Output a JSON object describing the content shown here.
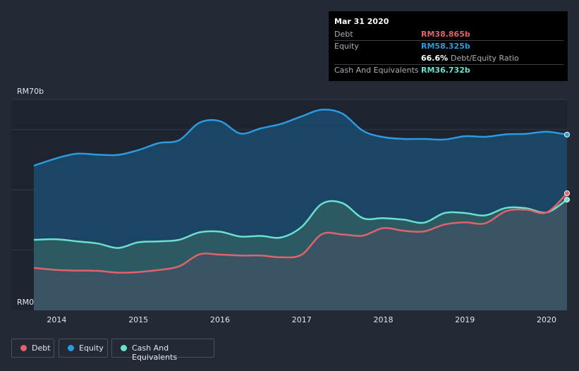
{
  "chart_data": {
    "type": "area",
    "y_top_label": "RM70b",
    "y_bottom_label": "RM0",
    "ylim": [
      0,
      70
    ],
    "xlim": [
      2013.72,
      2020.25
    ],
    "x_ticks": [
      {
        "label": "2014",
        "x": 2014
      },
      {
        "label": "2015",
        "x": 2015
      },
      {
        "label": "2016",
        "x": 2016
      },
      {
        "label": "2017",
        "x": 2017
      },
      {
        "label": "2018",
        "x": 2018
      },
      {
        "label": "2019",
        "x": 2019
      },
      {
        "label": "2020",
        "x": 2020
      }
    ],
    "gridlines_y": [
      70,
      60,
      40,
      20
    ],
    "series": [
      {
        "key": "equity",
        "color": "#2b9be0",
        "fill": "#1b4b6e",
        "points": [
          [
            2013.72,
            48.0
          ],
          [
            2014.0,
            50.5
          ],
          [
            2014.25,
            52.0
          ],
          [
            2014.5,
            51.7
          ],
          [
            2014.75,
            51.6
          ],
          [
            2015.0,
            53.2
          ],
          [
            2015.25,
            55.5
          ],
          [
            2015.5,
            56.5
          ],
          [
            2015.75,
            62.3
          ],
          [
            2016.0,
            62.8
          ],
          [
            2016.25,
            58.7
          ],
          [
            2016.5,
            60.4
          ],
          [
            2016.75,
            61.9
          ],
          [
            2017.0,
            64.4
          ],
          [
            2017.25,
            66.6
          ],
          [
            2017.5,
            65.3
          ],
          [
            2017.75,
            59.6
          ],
          [
            2018.0,
            57.5
          ],
          [
            2018.25,
            56.9
          ],
          [
            2018.5,
            56.9
          ],
          [
            2018.75,
            56.7
          ],
          [
            2019.0,
            57.8
          ],
          [
            2019.25,
            57.6
          ],
          [
            2019.5,
            58.4
          ],
          [
            2019.75,
            58.6
          ],
          [
            2020.0,
            59.3
          ],
          [
            2020.25,
            58.325
          ]
        ]
      },
      {
        "key": "cash",
        "color": "#6be0cf",
        "fill": "#2e5e63",
        "points": [
          [
            2013.72,
            23.4
          ],
          [
            2014.0,
            23.6
          ],
          [
            2014.25,
            22.9
          ],
          [
            2014.5,
            22.2
          ],
          [
            2014.75,
            20.7
          ],
          [
            2015.0,
            22.6
          ],
          [
            2015.25,
            22.9
          ],
          [
            2015.5,
            23.4
          ],
          [
            2015.75,
            25.9
          ],
          [
            2016.0,
            26.1
          ],
          [
            2016.25,
            24.5
          ],
          [
            2016.5,
            24.7
          ],
          [
            2016.75,
            24.2
          ],
          [
            2017.0,
            27.7
          ],
          [
            2017.25,
            35.4
          ],
          [
            2017.5,
            35.6
          ],
          [
            2017.75,
            30.6
          ],
          [
            2018.0,
            30.6
          ],
          [
            2018.25,
            30.1
          ],
          [
            2018.5,
            29.1
          ],
          [
            2018.75,
            32.3
          ],
          [
            2019.0,
            32.3
          ],
          [
            2019.25,
            31.5
          ],
          [
            2019.5,
            34.0
          ],
          [
            2019.75,
            33.9
          ],
          [
            2020.0,
            32.5
          ],
          [
            2020.25,
            36.732
          ]
        ]
      },
      {
        "key": "debt",
        "color": "#e0626a",
        "fill": "#3d5466",
        "points": [
          [
            2013.72,
            14.1
          ],
          [
            2014.0,
            13.4
          ],
          [
            2014.25,
            13.2
          ],
          [
            2014.5,
            13.1
          ],
          [
            2014.75,
            12.5
          ],
          [
            2015.0,
            12.7
          ],
          [
            2015.25,
            13.4
          ],
          [
            2015.5,
            14.6
          ],
          [
            2015.75,
            18.6
          ],
          [
            2016.0,
            18.5
          ],
          [
            2016.25,
            18.2
          ],
          [
            2016.5,
            18.2
          ],
          [
            2016.75,
            17.6
          ],
          [
            2017.0,
            18.5
          ],
          [
            2017.25,
            25.3
          ],
          [
            2017.5,
            25.2
          ],
          [
            2017.75,
            24.8
          ],
          [
            2018.0,
            27.3
          ],
          [
            2018.25,
            26.4
          ],
          [
            2018.5,
            26.2
          ],
          [
            2018.75,
            28.5
          ],
          [
            2019.0,
            29.2
          ],
          [
            2019.25,
            28.9
          ],
          [
            2019.5,
            32.9
          ],
          [
            2019.75,
            33.4
          ],
          [
            2020.0,
            32.5
          ],
          [
            2020.25,
            38.865
          ]
        ]
      }
    ]
  },
  "tooltip": {
    "date": "Mar 31 2020",
    "debt_label": "Debt",
    "debt_value": "RM38.865b",
    "equity_label": "Equity",
    "equity_value": "RM58.325b",
    "ratio_value": "66.6%",
    "ratio_label": "Debt/Equity Ratio",
    "cash_label": "Cash And Equivalents",
    "cash_value": "RM36.732b"
  },
  "legend": {
    "debt": "Debt",
    "equity": "Equity",
    "cash": "Cash And Equivalents"
  },
  "colors": {
    "debt": "#e0626a",
    "equity": "#2b9be0",
    "cash": "#6be0cf",
    "background": "#232a36"
  }
}
